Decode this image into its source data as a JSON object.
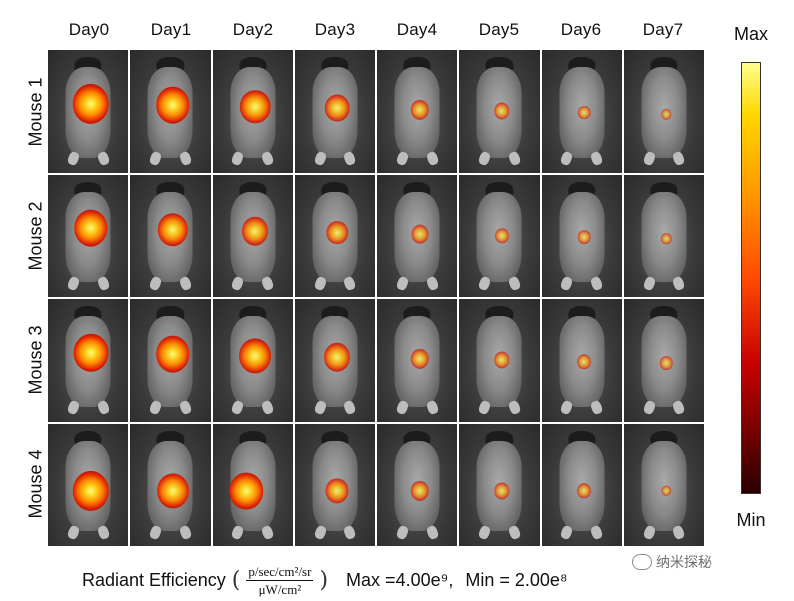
{
  "columns": [
    "Day0",
    "Day1",
    "Day2",
    "Day3",
    "Day4",
    "Day5",
    "Day6",
    "Day7"
  ],
  "rows": [
    "Mouse 1",
    "Mouse 2",
    "Mouse 3",
    "Mouse 4"
  ],
  "colorbar": {
    "max_label": "Max",
    "min_label": "Min"
  },
  "footer": {
    "label": "Radiant  Efficiency",
    "paren_open": "(",
    "unit_num": "p/sec/cm²/sr",
    "unit_den": "μW/cm²",
    "paren_close": ")",
    "max_text": "Max =4.00e⁹,",
    "min_text": "Min  = 2.00e⁸"
  },
  "watermark": "纳米探秘",
  "signal": [
    [
      0.95,
      0.85,
      0.75,
      0.55,
      0.35,
      0.25,
      0.15,
      0.05
    ],
    [
      0.85,
      0.75,
      0.6,
      0.45,
      0.3,
      0.2,
      0.15,
      0.08
    ],
    [
      0.9,
      0.85,
      0.8,
      0.6,
      0.35,
      0.25,
      0.2,
      0.15
    ],
    [
      0.95,
      0.8,
      0.85,
      0.5,
      0.35,
      0.25,
      0.2,
      0.05
    ]
  ],
  "colors": {
    "max": "#ffff8c",
    "mid": "#ff4a00",
    "min": "#2a0000"
  }
}
